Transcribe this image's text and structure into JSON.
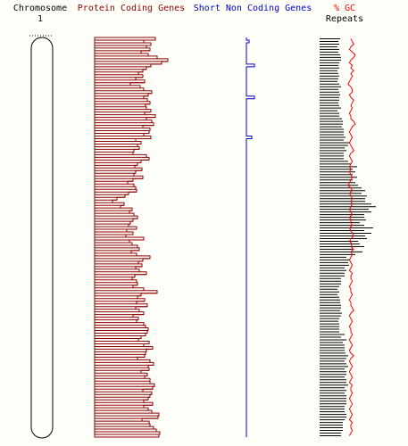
{
  "headers": {
    "chromosome": [
      "Chromosome",
      "1"
    ],
    "protein": "Protein Coding Genes",
    "short": "Short Non Coding Genes",
    "gc": "% GC",
    "repeats": "Repeats"
  },
  "colors": {
    "protein": "#8b0000",
    "short": "#0000cd",
    "gc": "#ff0000",
    "repeats": "#000000",
    "chromosome": "#000000"
  },
  "chart_data": {
    "type": "bar",
    "orientation": "horizontal-density-tracks",
    "bins": 150,
    "tracks": [
      {
        "name": "Protein Coding Genes",
        "values": [
          68,
          55,
          63,
          58,
          62,
          52,
          60,
          70,
          82,
          75,
          63,
          58,
          54,
          49,
          54,
          46,
          56,
          40,
          51,
          55,
          64,
          60,
          55,
          59,
          62,
          57,
          58,
          63,
          56,
          68,
          58,
          64,
          66,
          54,
          62,
          61,
          55,
          63,
          46,
          52,
          48,
          50,
          44,
          43,
          58,
          61,
          52,
          48,
          45,
          53,
          46,
          44,
          54,
          43,
          37,
          44,
          46,
          47,
          38,
          34,
          25,
          20,
          33,
          29,
          42,
          39,
          44,
          48,
          43,
          40,
          38,
          47,
          36,
          43,
          35,
          55,
          39,
          42,
          48,
          50,
          41,
          47,
          62,
          54,
          49,
          53,
          46,
          50,
          58,
          45,
          42,
          47,
          48,
          43,
          55,
          70,
          52,
          48,
          56,
          47,
          59,
          46,
          50,
          55,
          43,
          49,
          47,
          55,
          57,
          60,
          59,
          57,
          52,
          49,
          61,
          55,
          65,
          58,
          57,
          56,
          48,
          62,
          66,
          60,
          61,
          52,
          59,
          56,
          62,
          62,
          67,
          65,
          54,
          64,
          62,
          60,
          55,
          65,
          55,
          60,
          64,
          72,
          71,
          53,
          61,
          62,
          66,
          69,
          73,
          72
        ]
      },
      {
        "name": "Short Non Coding Genes",
        "values": [
          0,
          1,
          0,
          0,
          0,
          0,
          0,
          0,
          0,
          0,
          3,
          0,
          0,
          0,
          0,
          0,
          0,
          0,
          0,
          0,
          0,
          0,
          3,
          0,
          0,
          0,
          0,
          0,
          0,
          0,
          0,
          0,
          0,
          0,
          0,
          0,
          0,
          2,
          0,
          0,
          0,
          0,
          0,
          0,
          0,
          0,
          0,
          0,
          0,
          0,
          0,
          0,
          0,
          0,
          0,
          0,
          0,
          0,
          0,
          0,
          0,
          0,
          0,
          0,
          0,
          0,
          0,
          0,
          0,
          0,
          0,
          0,
          0,
          0,
          0,
          0,
          0,
          0,
          0,
          0,
          0,
          0,
          0,
          0,
          0,
          0,
          0,
          0,
          0,
          0,
          0,
          0,
          0,
          0,
          0,
          0,
          0,
          0,
          0,
          0,
          0,
          0,
          0,
          0,
          0,
          0,
          0,
          0,
          0,
          0,
          0,
          0,
          0,
          0,
          0,
          0,
          0,
          0,
          0,
          0,
          0,
          0,
          0,
          0,
          0,
          0,
          0,
          0,
          0,
          0,
          0,
          0,
          0,
          0,
          0,
          0,
          0,
          0,
          0,
          0,
          0,
          0,
          0,
          0,
          0,
          0,
          0,
          0,
          0,
          0
        ]
      },
      {
        "name": "Repeats",
        "values": [
          23,
          21,
          22,
          20,
          22,
          21,
          23,
          24,
          24,
          22,
          21,
          22,
          20,
          21,
          22,
          21,
          20,
          22,
          24,
          21,
          22,
          23,
          22,
          22,
          21,
          22,
          24,
          20,
          22,
          22,
          25,
          26,
          26,
          25,
          27,
          27,
          27,
          29,
          27,
          33,
          32,
          28,
          30,
          27,
          27,
          27,
          32,
          35,
          42,
          37,
          40,
          37,
          42,
          37,
          40,
          43,
          47,
          51,
          47,
          53,
          51,
          51,
          58,
          63,
          55,
          58,
          50,
          50,
          52,
          45,
          50,
          60,
          50,
          58,
          51,
          53,
          43,
          45,
          50,
          37,
          48,
          40,
          30,
          34,
          32,
          33,
          28,
          30,
          28,
          28,
          24,
          24,
          24,
          22,
          20,
          22,
          20,
          22,
          23,
          23,
          24,
          24,
          23,
          25,
          24,
          22,
          21,
          22,
          22,
          22,
          22,
          28,
          24,
          30,
          26,
          28,
          28,
          28,
          29,
          32,
          30,
          28,
          30,
          32,
          28,
          30,
          30,
          28,
          30,
          30,
          32,
          28,
          30,
          28,
          30,
          30,
          30,
          30,
          28,
          28,
          28,
          30,
          30,
          28,
          26,
          26,
          26,
          26,
          24,
          24
        ]
      },
      {
        "name": "% GC",
        "values": [
          40,
          42,
          44,
          40,
          38,
          42,
          46,
          44,
          40,
          38,
          42,
          40,
          44,
          40,
          42,
          40,
          38,
          36,
          40,
          42,
          42,
          38,
          40,
          44,
          42,
          40,
          42,
          40,
          38,
          40,
          40,
          44,
          46,
          42,
          40,
          38,
          40,
          42,
          40,
          38,
          40,
          42,
          44,
          40,
          38,
          40,
          42,
          40,
          38,
          40,
          38,
          40,
          42,
          40,
          38,
          36,
          40,
          42,
          38,
          40,
          42,
          40,
          42,
          40,
          38,
          40,
          42,
          38,
          40,
          40,
          42,
          38,
          40,
          42,
          44,
          40,
          38,
          42,
          40,
          44,
          40,
          42,
          40,
          38,
          40,
          42,
          40,
          38,
          42,
          40,
          40,
          42,
          40,
          38,
          40,
          40,
          42,
          40,
          38,
          40,
          40,
          42,
          44,
          40,
          38,
          40,
          42,
          40,
          38,
          40,
          40,
          42,
          40,
          38,
          40,
          42,
          40,
          38,
          40,
          44,
          40,
          38,
          40,
          42,
          40,
          38,
          40,
          42,
          40,
          38,
          42,
          40,
          40,
          42,
          40,
          38,
          40,
          42,
          40,
          38,
          40,
          42,
          40,
          38,
          42,
          40,
          40,
          42,
          40,
          38
        ]
      }
    ]
  }
}
